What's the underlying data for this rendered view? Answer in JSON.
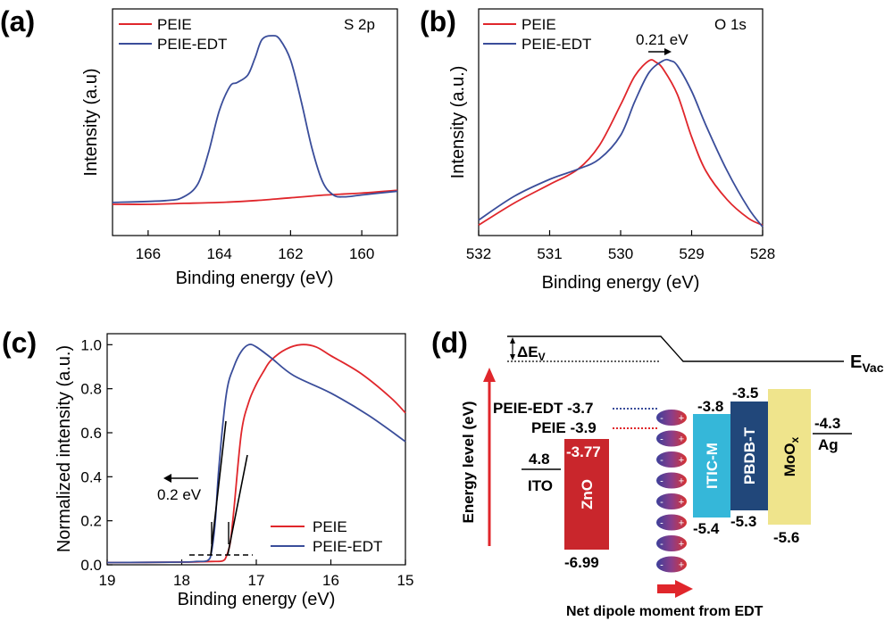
{
  "chart_data": [
    {
      "panel_label": "(a)",
      "type": "line",
      "annotation": "S 2p",
      "xlabel": "Binding energy (eV)",
      "ylabel": "Intensity (a.u)",
      "xlim": [
        167,
        159
      ],
      "ylim": [
        0,
        1
      ],
      "xticks": [
        "166",
        "164",
        "162",
        "160"
      ],
      "legend_position": "top-left",
      "series": [
        {
          "name": "PEIE",
          "color": "#e0262b",
          "x": [
            167,
            166,
            165,
            164,
            163,
            162,
            161,
            160,
            159
          ],
          "y": [
            0.1,
            0.1,
            0.105,
            0.11,
            0.12,
            0.135,
            0.15,
            0.16,
            0.175
          ]
        },
        {
          "name": "PEIE-EDT",
          "color": "#3a4d9a",
          "x": [
            167,
            165.5,
            165,
            164.6,
            164.3,
            164,
            163.7,
            163.5,
            163.2,
            163,
            162.8,
            162.5,
            162.3,
            162,
            161.7,
            161.4,
            161.1,
            160.8,
            160.5,
            160,
            159
          ],
          "y": [
            0.11,
            0.12,
            0.14,
            0.21,
            0.38,
            0.6,
            0.73,
            0.75,
            0.79,
            0.88,
            0.98,
            1.0,
            0.98,
            0.87,
            0.65,
            0.4,
            0.22,
            0.15,
            0.14,
            0.15,
            0.17
          ]
        }
      ]
    },
    {
      "panel_label": "(b)",
      "type": "line",
      "annotation": "O 1s",
      "shift_label": "0.21 eV",
      "xlabel": "Binding energy (eV)",
      "ylabel": "Intensity (a.u.)",
      "xlim": [
        532,
        528
      ],
      "ylim": [
        0,
        1
      ],
      "xticks": [
        "532",
        "531",
        "530",
        "529",
        "528"
      ],
      "legend_position": "top-left",
      "series": [
        {
          "name": "PEIE",
          "color": "#e0262b",
          "x": [
            532,
            531.5,
            531,
            530.6,
            530.3,
            530,
            529.8,
            529.6,
            529.5,
            529.4,
            529.2,
            529,
            528.8,
            528.5,
            528.2,
            528
          ],
          "y": [
            0.03,
            0.16,
            0.27,
            0.36,
            0.5,
            0.74,
            0.91,
            1.0,
            0.99,
            0.95,
            0.8,
            0.55,
            0.35,
            0.18,
            0.07,
            0.03
          ]
        },
        {
          "name": "PEIE-EDT",
          "color": "#3a4d9a",
          "x": [
            532,
            531.5,
            531,
            530.6,
            530.3,
            530,
            529.8,
            529.6,
            529.4,
            529.3,
            529.2,
            529,
            528.8,
            528.5,
            528.2,
            528
          ],
          "y": [
            0.06,
            0.2,
            0.3,
            0.36,
            0.42,
            0.56,
            0.76,
            0.93,
            1.0,
            1.0,
            0.97,
            0.82,
            0.62,
            0.35,
            0.13,
            0.02
          ]
        }
      ]
    },
    {
      "panel_label": "(c)",
      "type": "line",
      "shift_label": "0.2 eV",
      "xlabel": "Binding energy (eV)",
      "ylabel": "Normalized intensity (a.u.)",
      "xlim": [
        19,
        15
      ],
      "ylim": [
        0,
        1.05
      ],
      "xticks": [
        "19",
        "18",
        "17",
        "16",
        "15"
      ],
      "yticks": [
        "0.0",
        "0.2",
        "0.4",
        "0.6",
        "0.8",
        "1.0"
      ],
      "legend_position": "bottom-right",
      "series": [
        {
          "name": "PEIE",
          "color": "#e0262b",
          "x": [
            19,
            18,
            17.6,
            17.45,
            17.4,
            17.35,
            17.3,
            17.2,
            17.1,
            17.0,
            16.9,
            16.8,
            16.6,
            16.4,
            16.2,
            16.0,
            15.6,
            15.2,
            15
          ],
          "y": [
            0.01,
            0.012,
            0.015,
            0.018,
            0.04,
            0.1,
            0.25,
            0.6,
            0.74,
            0.82,
            0.88,
            0.93,
            0.98,
            1.0,
            0.99,
            0.95,
            0.87,
            0.76,
            0.69
          ]
        },
        {
          "name": "PEIE-EDT",
          "color": "#3a4d9a",
          "x": [
            19,
            18,
            17.8,
            17.65,
            17.6,
            17.55,
            17.5,
            17.4,
            17.3,
            17.2,
            17.1,
            17.0,
            16.8,
            16.5,
            16.0,
            15.5,
            15
          ],
          "y": [
            0.01,
            0.012,
            0.015,
            0.02,
            0.06,
            0.2,
            0.45,
            0.78,
            0.9,
            0.97,
            1.0,
            0.99,
            0.94,
            0.86,
            0.78,
            0.68,
            0.56
          ]
        }
      ]
    },
    {
      "panel_label": "(d)",
      "type": "diagram",
      "ylabel": "Energy level (eV)",
      "vacuum_label": "E",
      "vacuum_sub": "Vac",
      "delta_label": "ΔE",
      "delta_sub": "V",
      "layers": [
        {
          "name": "ITO",
          "top": "4.8"
        },
        {
          "name": "ZnO",
          "top": "-3.77",
          "bottom": "-6.99",
          "color": "#c9262c"
        },
        {
          "name": "ITIC-M",
          "top": "-3.8",
          "bottom": "-5.4",
          "color": "#35b7d9"
        },
        {
          "name": "PBDB-T",
          "top": "-3.5",
          "bottom": "-5.3",
          "color": "#21477a"
        },
        {
          "name": "MoO",
          "sub": "x",
          "top": "-5.6",
          "bottom_label": "-5.6",
          "color": "#efe48c"
        },
        {
          "name": "Ag",
          "top": "-4.3"
        }
      ],
      "peie_edt_label": "PEIE-EDT -3.7",
      "peie_label": "PEIE -3.9",
      "dipole_label": "Net dipole moment from EDT"
    }
  ]
}
